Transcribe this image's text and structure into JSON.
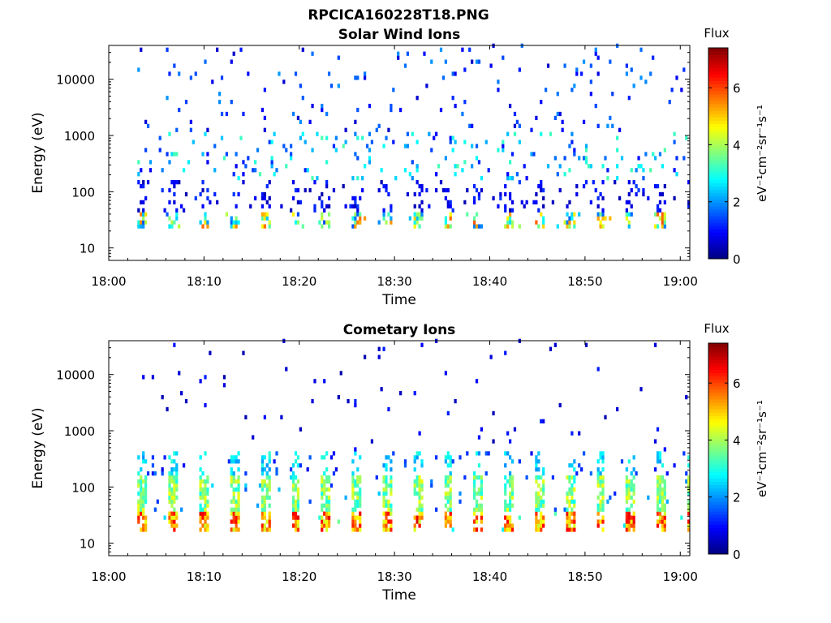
{
  "figure_title": "RPCICA160228T18.PNG",
  "chart_data": [
    {
      "type": "heatmap",
      "title": "Solar Wind Ions",
      "xlabel": "Time",
      "ylabel": "Energy (eV)",
      "x_ticks": [
        "18:00",
        "18:10",
        "18:20",
        "18:30",
        "18:40",
        "18:50",
        "19:00"
      ],
      "xlim": [
        "18:00",
        "19:01"
      ],
      "y_scale": "log",
      "y_ticks": [
        "10",
        "100",
        "1000",
        "10000"
      ],
      "ylim": [
        6,
        40000
      ],
      "colorbar": {
        "title": "Flux",
        "label": "eV⁻¹cm⁻²sr⁻¹s⁻¹",
        "ticks": [
          "0",
          "2",
          "4",
          "6"
        ],
        "range": [
          0,
          7.4
        ],
        "colormap": "jet"
      },
      "data_start": "18:03",
      "data_end": "19:01",
      "pattern": "sparse counts; burst columns near 20-40 eV repeat roughly every 3.2 min",
      "bands": [
        {
          "energy_ev": [
            20,
            40
          ],
          "typical_flux": 3.5
        },
        {
          "energy_ev": [
            40,
            150
          ],
          "typical_flux": 0.8
        },
        {
          "energy_ev": [
            150,
            1000
          ],
          "typical_flux": 2.0
        },
        {
          "energy_ev": [
            1000,
            40000
          ],
          "typical_flux": 1.2
        }
      ],
      "seed": 11
    },
    {
      "type": "heatmap",
      "title": "Cometary Ions",
      "xlabel": "Time",
      "ylabel": "Energy (eV)",
      "x_ticks": [
        "18:00",
        "18:10",
        "18:20",
        "18:30",
        "18:40",
        "18:50",
        "19:00"
      ],
      "xlim": [
        "18:00",
        "19:01"
      ],
      "y_scale": "log",
      "y_ticks": [
        "10",
        "100",
        "1000",
        "10000"
      ],
      "ylim": [
        6,
        40000
      ],
      "colorbar": {
        "title": "Flux",
        "label": "eV⁻¹cm⁻²sr⁻¹s⁻¹",
        "ticks": [
          "0",
          "2",
          "4",
          "6"
        ],
        "range": [
          0,
          7.4
        ],
        "colormap": "jet"
      },
      "data_start": "18:03",
      "data_end": "19:01",
      "pattern": "dense bursts peaking at 20-30 eV repeating roughly every 3.2 min",
      "bands": [
        {
          "energy_ev": [
            15,
            35
          ],
          "typical_flux": 5.6
        },
        {
          "energy_ev": [
            35,
            150
          ],
          "typical_flux": 3.8
        },
        {
          "energy_ev": [
            150,
            400
          ],
          "typical_flux": 2.6
        },
        {
          "energy_ev": [
            400,
            40000
          ],
          "typical_flux": 1.0
        }
      ],
      "seed": 29
    }
  ]
}
